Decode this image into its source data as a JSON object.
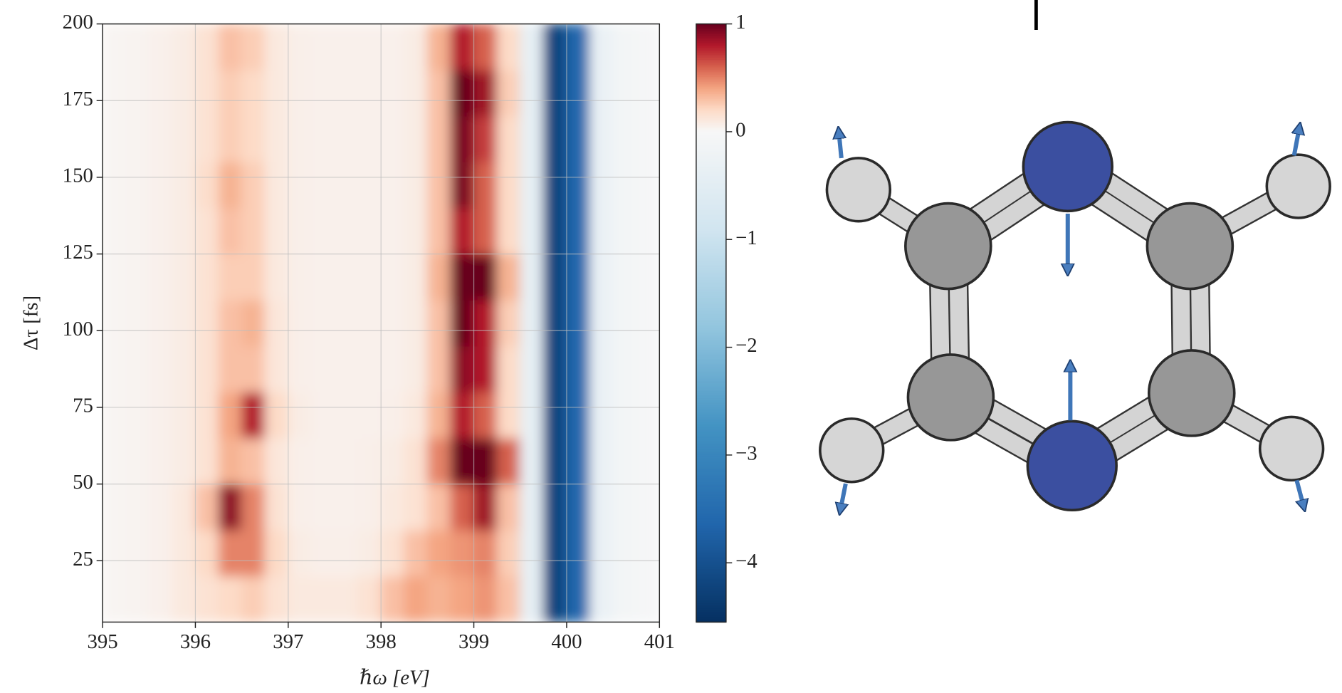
{
  "chart_data": {
    "type": "heatmap",
    "xlabel": "ℏω [eV]",
    "ylabel": "Δτ [fs]",
    "x": [
      395.125,
      395.375,
      395.625,
      395.875,
      396.125,
      396.375,
      396.625,
      396.875,
      397.125,
      397.375,
      397.625,
      397.875,
      398.125,
      398.375,
      398.625,
      398.875,
      399.125,
      399.375,
      399.625,
      399.875,
      400.125,
      400.375,
      400.625,
      400.875
    ],
    "y": [
      12.5,
      27.5,
      42.5,
      57.5,
      72.5,
      87.5,
      102.5,
      117.5,
      132.5,
      147.5,
      162.5,
      177.5,
      192.5
    ],
    "values": [
      [
        0.02,
        0.03,
        0.05,
        0.1,
        0.15,
        0.2,
        0.25,
        0.15,
        0.1,
        0.1,
        0.1,
        0.15,
        0.3,
        0.4,
        0.35,
        0.4,
        0.45,
        0.3,
        -0.4,
        -4.2,
        -3.6,
        -0.3,
        -0.1,
        -0.05
      ],
      [
        0.02,
        0.03,
        0.05,
        0.1,
        0.2,
        0.5,
        0.5,
        0.2,
        0.08,
        0.06,
        0.06,
        0.08,
        0.15,
        0.3,
        0.4,
        0.45,
        0.5,
        0.25,
        -0.4,
        -4.2,
        -3.6,
        -0.3,
        -0.1,
        -0.05
      ],
      [
        0.02,
        0.03,
        0.05,
        0.1,
        0.3,
        0.9,
        0.5,
        0.15,
        0.06,
        0.05,
        0.05,
        0.06,
        0.1,
        0.15,
        0.3,
        0.6,
        0.85,
        0.3,
        -0.4,
        -4.2,
        -3.6,
        -0.3,
        -0.1,
        -0.05
      ],
      [
        0.02,
        0.03,
        0.05,
        0.08,
        0.15,
        0.35,
        0.3,
        0.12,
        0.06,
        0.05,
        0.05,
        0.06,
        0.08,
        0.15,
        0.5,
        1.0,
        1.0,
        0.6,
        -0.4,
        -4.2,
        -3.6,
        -0.3,
        -0.1,
        -0.05
      ],
      [
        0.02,
        0.03,
        0.05,
        0.08,
        0.15,
        0.4,
        0.8,
        0.2,
        0.08,
        0.05,
        0.05,
        0.05,
        0.06,
        0.1,
        0.35,
        0.8,
        0.6,
        0.2,
        -0.4,
        -4.2,
        -3.6,
        -0.3,
        -0.1,
        -0.05
      ],
      [
        0.02,
        0.03,
        0.05,
        0.08,
        0.15,
        0.3,
        0.3,
        0.12,
        0.06,
        0.05,
        0.05,
        0.05,
        0.05,
        0.08,
        0.3,
        0.9,
        0.8,
        0.2,
        -0.4,
        -4.2,
        -3.6,
        -0.3,
        -0.1,
        -0.05
      ],
      [
        0.02,
        0.03,
        0.05,
        0.08,
        0.15,
        0.3,
        0.35,
        0.12,
        0.06,
        0.05,
        0.05,
        0.05,
        0.05,
        0.08,
        0.3,
        1.0,
        0.8,
        0.25,
        -0.4,
        -4.2,
        -3.6,
        -0.3,
        -0.1,
        -0.05
      ],
      [
        0.02,
        0.03,
        0.05,
        0.08,
        0.15,
        0.25,
        0.25,
        0.1,
        0.06,
        0.05,
        0.05,
        0.05,
        0.05,
        0.08,
        0.35,
        1.0,
        1.0,
        0.35,
        -0.4,
        -4.2,
        -3.6,
        -0.3,
        -0.1,
        -0.05
      ],
      [
        0.02,
        0.03,
        0.05,
        0.08,
        0.15,
        0.3,
        0.25,
        0.1,
        0.06,
        0.05,
        0.05,
        0.05,
        0.05,
        0.08,
        0.3,
        0.8,
        0.6,
        0.2,
        -0.4,
        -4.2,
        -3.6,
        -0.3,
        -0.1,
        -0.05
      ],
      [
        0.02,
        0.03,
        0.05,
        0.08,
        0.18,
        0.35,
        0.25,
        0.1,
        0.06,
        0.05,
        0.05,
        0.05,
        0.05,
        0.08,
        0.3,
        0.95,
        0.6,
        0.2,
        -0.4,
        -4.2,
        -3.6,
        -0.3,
        -0.1,
        -0.05
      ],
      [
        0.02,
        0.03,
        0.05,
        0.08,
        0.15,
        0.25,
        0.2,
        0.1,
        0.06,
        0.05,
        0.05,
        0.05,
        0.05,
        0.08,
        0.3,
        0.95,
        0.7,
        0.2,
        -0.4,
        -4.2,
        -3.6,
        -0.3,
        -0.1,
        -0.05
      ],
      [
        0.02,
        0.03,
        0.05,
        0.08,
        0.15,
        0.25,
        0.2,
        0.1,
        0.06,
        0.05,
        0.05,
        0.05,
        0.05,
        0.08,
        0.3,
        1.0,
        0.85,
        0.25,
        -0.4,
        -4.2,
        -3.6,
        -0.3,
        -0.1,
        -0.05
      ],
      [
        0.02,
        0.03,
        0.05,
        0.08,
        0.15,
        0.3,
        0.25,
        0.1,
        0.06,
        0.05,
        0.05,
        0.05,
        0.05,
        0.08,
        0.35,
        0.8,
        0.6,
        0.2,
        -0.4,
        -4.2,
        -3.6,
        -0.3,
        -0.1,
        -0.05
      ]
    ],
    "xlim": [
      395,
      401
    ],
    "ylim": [
      5,
      200
    ],
    "xticks": [
      395,
      396,
      397,
      398,
      399,
      400,
      401
    ],
    "yticks": [
      25,
      50,
      75,
      100,
      125,
      150,
      175,
      200
    ],
    "clim": [
      -4.55,
      1
    ],
    "cticks": [
      1,
      0,
      {
        "value": -1,
        "label": "−1"
      },
      {
        "value": -2,
        "label": "−2"
      },
      {
        "value": -3,
        "label": "−3"
      },
      {
        "value": -4,
        "label": "−4"
      }
    ],
    "colormap": [
      "#053061",
      "#2166ac",
      "#4393c3",
      "#92c5de",
      "#d1e5f0",
      "#f7f7f7",
      "#fddbc7",
      "#f4a582",
      "#d6604d",
      "#b2182b",
      "#67001f"
    ],
    "grid": true
  }
}
